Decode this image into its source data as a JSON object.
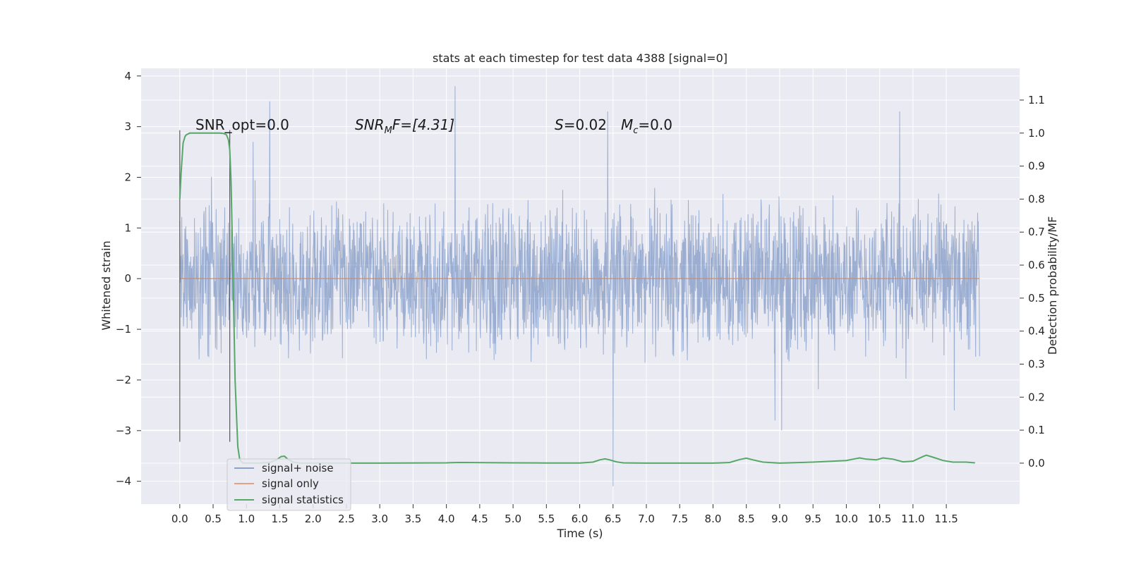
{
  "chart_data": {
    "type": "line",
    "title": "stats at each timestep for test data 4388 [signal=0]",
    "xlabel": "Time (s)",
    "ylabel": "Whitened strain",
    "y2label": "Detection probability/MF",
    "xlim": [
      -0.58,
      12.6
    ],
    "ylim": [
      -4.45,
      4.15
    ],
    "y2lim": [
      -0.124,
      1.196
    ],
    "x_ticks": [
      "0.0",
      "0.5",
      "1.0",
      "1.5",
      "2.0",
      "2.5",
      "3.0",
      "3.5",
      "4.0",
      "4.5",
      "5.0",
      "5.5",
      "6.0",
      "6.5",
      "7.0",
      "7.5",
      "8.0",
      "8.5",
      "9.0",
      "9.5",
      "10.0",
      "10.5",
      "11.0",
      "11.5"
    ],
    "y_ticks": [
      "−4",
      "−3",
      "−2",
      "−1",
      "0",
      "1",
      "2",
      "3",
      "4"
    ],
    "y2_ticks": [
      "0.0",
      "0.1",
      "0.2",
      "0.3",
      "0.4",
      "0.5",
      "0.6",
      "0.7",
      "0.8",
      "0.9",
      "1.0",
      "1.1"
    ],
    "grid": true,
    "legend_position": "lower-left",
    "colors": {
      "plot_bg": "#eaeaf2",
      "grid": "#ffffff",
      "noise": "#4c72b0",
      "signal_only": "#dd8452",
      "statistics": "#55a868",
      "vline": "#333333"
    },
    "series": [
      {
        "name": "signal+ noise",
        "t_range": [
          0.0,
          12.0
        ],
        "typical_amplitude": 1.7,
        "peaks": [
          [
            1.35,
            3.5
          ],
          [
            4.13,
            3.8
          ],
          [
            6.5,
            -4.1
          ],
          [
            10.8,
            3.3
          ],
          [
            9.03,
            -3.0
          ],
          [
            6.42,
            3.3
          ],
          [
            8.93,
            -2.8
          ],
          [
            1.1,
            2.7
          ],
          [
            11.62,
            -2.6
          ]
        ]
      },
      {
        "name": "signal only",
        "x": [
          0.0,
          12.0
        ],
        "y": [
          0.0,
          0.0
        ]
      },
      {
        "name": "signal statistics",
        "axis": "right",
        "x": [
          0.0,
          0.02,
          0.05,
          0.08,
          0.1,
          0.15,
          0.2,
          0.3,
          0.4,
          0.5,
          0.55,
          0.6,
          0.65,
          0.7,
          0.73,
          0.75,
          0.77,
          0.8,
          0.83,
          0.87,
          0.9,
          0.95,
          1.0,
          1.2,
          1.35,
          1.45,
          1.52,
          1.57,
          1.62,
          1.7,
          1.8,
          2.0,
          3.0,
          4.0,
          4.2,
          5.0,
          5.5,
          6.0,
          6.2,
          6.3,
          6.38,
          6.45,
          6.55,
          6.65,
          7.0,
          7.5,
          8.0,
          8.25,
          8.4,
          8.5,
          8.6,
          8.75,
          9.0,
          9.5,
          10.0,
          10.1,
          10.2,
          10.3,
          10.45,
          10.55,
          10.7,
          10.85,
          11.0,
          11.15,
          11.2,
          11.3,
          11.45,
          11.6,
          11.8,
          11.93
        ],
        "y": [
          0.8,
          0.88,
          0.97,
          0.99,
          0.995,
          1.0,
          1.0,
          1.0,
          1.0,
          1.0,
          1.0,
          1.0,
          0.999,
          0.995,
          0.98,
          0.95,
          0.85,
          0.55,
          0.25,
          0.05,
          0.01,
          0.0,
          0.0,
          0.0,
          0.002,
          0.01,
          0.02,
          0.021,
          0.012,
          0.003,
          0.0,
          0.0,
          0.0,
          0.001,
          0.002,
          0.001,
          0.0005,
          0.0005,
          0.003,
          0.01,
          0.013,
          0.01,
          0.004,
          0.001,
          0.0,
          0.0,
          0.0,
          0.002,
          0.011,
          0.015,
          0.01,
          0.003,
          0.0,
          0.003,
          0.008,
          0.012,
          0.016,
          0.012,
          0.01,
          0.016,
          0.012,
          0.004,
          0.006,
          0.02,
          0.024,
          0.018,
          0.008,
          0.003,
          0.003,
          0.001
        ]
      }
    ],
    "vlines": [
      0.0,
      0.75
    ],
    "annotations": {
      "snr_opt": "SNR_opt=0.0",
      "snr_mf_main": "SNR",
      "snr_mf_sub": "M",
      "snr_mf_rest": "F=[4.31]",
      "s_main": "S",
      "s_rest": "=0.02",
      "mc_main": "M",
      "mc_sub": "c",
      "mc_rest": "=0.0"
    }
  }
}
